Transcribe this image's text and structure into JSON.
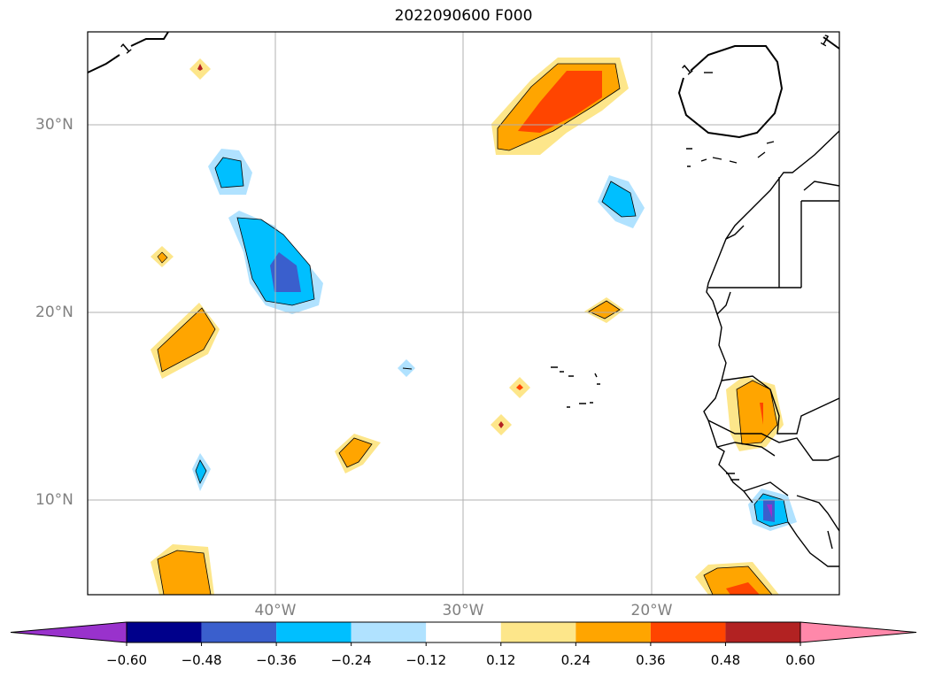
{
  "title": "2022090600 F000",
  "map": {
    "lon_range": [
      -50,
      -10
    ],
    "lat_range": [
      5,
      35
    ],
    "lat_ticks": [
      {
        "lat": 30,
        "label": "30°N"
      },
      {
        "lat": 20,
        "label": "20°N"
      },
      {
        "lat": 10,
        "label": "10°N"
      }
    ],
    "lon_ticks": [
      {
        "lon": -40,
        "label": "40°W"
      },
      {
        "lon": -30,
        "label": "30°W"
      },
      {
        "lon": -20,
        "label": "20°W"
      }
    ],
    "gridlines": true,
    "contour_label": "1",
    "coastline_color": "#000000"
  },
  "colorbar": {
    "levels": [
      "−0.60",
      "−0.48",
      "−0.36",
      "−0.24",
      "−0.12",
      "0.12",
      "0.24",
      "0.36",
      "0.48",
      "0.60"
    ],
    "colors": [
      "#9932cc",
      "#00008b",
      "#3a5fcd",
      "#00bfff",
      "#b0e2ff",
      "#ffffff",
      "#fde68a",
      "#ffa500",
      "#ff4500",
      "#b22222",
      "#ff88aa"
    ],
    "extend": "both"
  }
}
